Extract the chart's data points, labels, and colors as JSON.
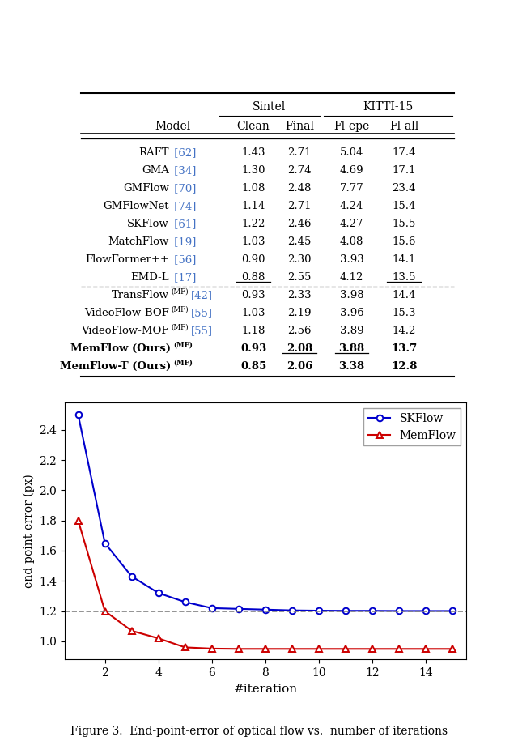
{
  "table": {
    "rows": [
      {
        "model": "RAFT",
        "ref": "[62]",
        "mf": false,
        "clean": "1.43",
        "final": "2.71",
        "flepe": "5.04",
        "flall": "17.4",
        "bold": false,
        "ul_clean": false,
        "ul_final": false,
        "ul_flepe": false,
        "ul_flall": false
      },
      {
        "model": "GMA",
        "ref": "[34]",
        "mf": false,
        "clean": "1.30",
        "final": "2.74",
        "flepe": "4.69",
        "flall": "17.1",
        "bold": false,
        "ul_clean": false,
        "ul_final": false,
        "ul_flepe": false,
        "ul_flall": false
      },
      {
        "model": "GMFlow",
        "ref": "[70]",
        "mf": false,
        "clean": "1.08",
        "final": "2.48",
        "flepe": "7.77",
        "flall": "23.4",
        "bold": false,
        "ul_clean": false,
        "ul_final": false,
        "ul_flepe": false,
        "ul_flall": false
      },
      {
        "model": "GMFlowNet",
        "ref": "[74]",
        "mf": false,
        "clean": "1.14",
        "final": "2.71",
        "flepe": "4.24",
        "flall": "15.4",
        "bold": false,
        "ul_clean": false,
        "ul_final": false,
        "ul_flepe": false,
        "ul_flall": false
      },
      {
        "model": "SKFlow",
        "ref": "[61]",
        "mf": false,
        "clean": "1.22",
        "final": "2.46",
        "flepe": "4.27",
        "flall": "15.5",
        "bold": false,
        "ul_clean": false,
        "ul_final": false,
        "ul_flepe": false,
        "ul_flall": false
      },
      {
        "model": "MatchFlow",
        "ref": "[19]",
        "mf": false,
        "clean": "1.03",
        "final": "2.45",
        "flepe": "4.08",
        "flall": "15.6",
        "bold": false,
        "ul_clean": false,
        "ul_final": false,
        "ul_flepe": false,
        "ul_flall": false
      },
      {
        "model": "FlowFormer++",
        "ref": "[56]",
        "mf": false,
        "clean": "0.90",
        "final": "2.30",
        "flepe": "3.93",
        "flall": "14.1",
        "bold": false,
        "ul_clean": false,
        "ul_final": false,
        "ul_flepe": false,
        "ul_flall": false
      },
      {
        "model": "EMD-L",
        "ref": "[17]",
        "mf": false,
        "clean": "0.88",
        "final": "2.55",
        "flepe": "4.12",
        "flall": "13.5",
        "bold": false,
        "ul_clean": true,
        "ul_final": false,
        "ul_flepe": false,
        "ul_flall": true
      },
      {
        "model": "TransFlow",
        "ref": "[42]",
        "mf": true,
        "clean": "0.93",
        "final": "2.33",
        "flepe": "3.98",
        "flall": "14.4",
        "bold": false,
        "ul_clean": false,
        "ul_final": false,
        "ul_flepe": false,
        "ul_flall": false
      },
      {
        "model": "VideoFlow-BOF",
        "ref": "[55]",
        "mf": true,
        "clean": "1.03",
        "final": "2.19",
        "flepe": "3.96",
        "flall": "15.3",
        "bold": false,
        "ul_clean": false,
        "ul_final": false,
        "ul_flepe": false,
        "ul_flall": false
      },
      {
        "model": "VideoFlow-MOF",
        "ref": "[55]",
        "mf": true,
        "clean": "1.18",
        "final": "2.56",
        "flepe": "3.89",
        "flall": "14.2",
        "bold": false,
        "ul_clean": false,
        "ul_final": false,
        "ul_flepe": false,
        "ul_flall": false
      },
      {
        "model": "MemFlow (Ours)",
        "ref": "",
        "mf": true,
        "clean": "0.93",
        "final": "2.08",
        "flepe": "3.88",
        "flall": "13.7",
        "bold": true,
        "ul_clean": false,
        "ul_final": true,
        "ul_flepe": true,
        "ul_flall": false
      },
      {
        "model": "MemFlow-T (Ours)",
        "ref": "",
        "mf": true,
        "clean": "0.85",
        "final": "2.06",
        "flepe": "3.38",
        "flall": "12.8",
        "bold": true,
        "ul_clean": false,
        "ul_final": false,
        "ul_flepe": false,
        "ul_flall": false
      }
    ],
    "dashed_after_row": 7
  },
  "plot": {
    "skflow_x": [
      1,
      2,
      3,
      4,
      5,
      6,
      7,
      8,
      9,
      10,
      11,
      12,
      13,
      14,
      15
    ],
    "skflow_y": [
      2.5,
      1.65,
      1.43,
      1.32,
      1.26,
      1.22,
      1.215,
      1.21,
      1.205,
      1.203,
      1.202,
      1.202,
      1.201,
      1.201,
      1.201
    ],
    "memflow_x": [
      1,
      2,
      3,
      4,
      5,
      6,
      7,
      8,
      9,
      10,
      11,
      12,
      13,
      14,
      15
    ],
    "memflow_y": [
      1.8,
      1.2,
      1.07,
      1.02,
      0.96,
      0.952,
      0.95,
      0.95,
      0.95,
      0.95,
      0.95,
      0.95,
      0.95,
      0.95,
      0.95
    ],
    "hline_y": 1.2,
    "xlabel": "#iteration",
    "ylabel": "end-point-error (px)",
    "xlim": [
      0.5,
      15.5
    ],
    "ylim": [
      0.88,
      2.58
    ],
    "yticks": [
      1.0,
      1.2,
      1.4,
      1.6,
      1.8,
      2.0,
      2.2,
      2.4
    ],
    "xticks": [
      2,
      4,
      6,
      8,
      10,
      12,
      14
    ],
    "skflow_color": "#0000cc",
    "memflow_color": "#cc0000",
    "caption": "Figure 3.  End-point-error of optical flow vs.  number of iterations"
  },
  "ref_color": "#4472C4",
  "bg_color": "#FFFFFF"
}
